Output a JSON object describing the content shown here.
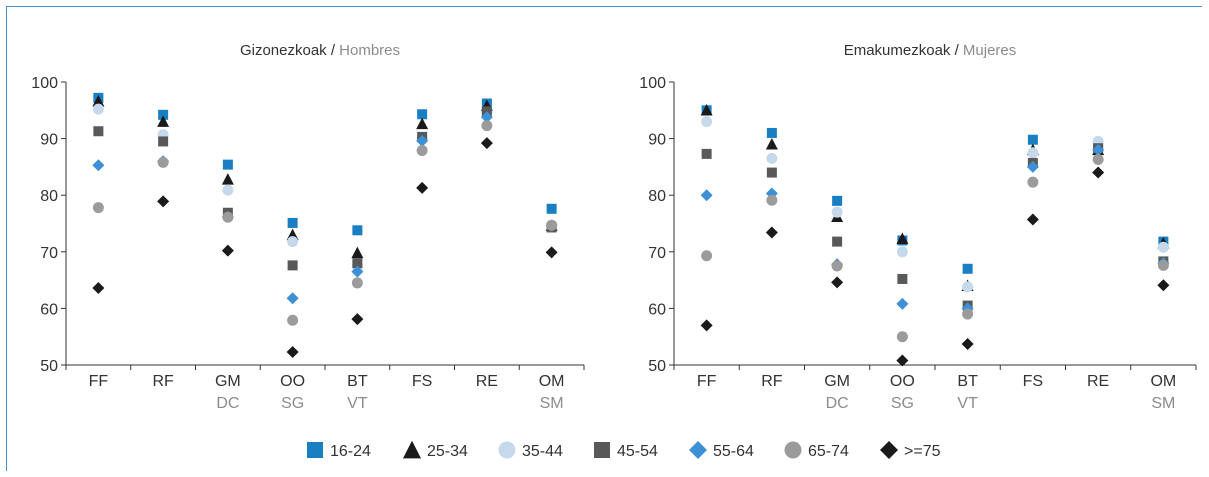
{
  "colors": {
    "16-24": "#1a7ec2",
    "25-34": "#1a1a1a",
    "35-44": "#c6d8ec",
    "45-54": "#595959",
    "55-64": "#3d8fd6",
    "65-74": "#9b9b9b",
    ">=75": "#1a1a1a",
    "axis": "#333333",
    "secondary_text": "#8c8c8c",
    "frame": "#4a90c8"
  },
  "legend": [
    {
      "name": "16-24",
      "marker": "square",
      "color": "#1a7ec2"
    },
    {
      "name": "25-34",
      "marker": "triangle",
      "color": "#1a1a1a"
    },
    {
      "name": "35-44",
      "marker": "circle",
      "color": "#c6d8ec"
    },
    {
      "name": "45-54",
      "marker": "square",
      "color": "#595959"
    },
    {
      "name": "55-64",
      "marker": "diamond",
      "color": "#3d8fd6"
    },
    {
      "name": "65-74",
      "marker": "circle",
      "color": "#9b9b9b"
    },
    {
      "name": ">=75",
      "marker": "diamond",
      "color": "#1a1a1a"
    }
  ],
  "chart_data": [
    {
      "type": "scatter",
      "title_primary": "Gizonezkoak / ",
      "title_secondary": "Hombres",
      "categories": [
        "FF",
        "RF",
        "GM",
        "OO",
        "BT",
        "FS",
        "RE",
        "OM"
      ],
      "categories_secondary": [
        "",
        "",
        "DC",
        "SG",
        "VT",
        "",
        "",
        "SM"
      ],
      "ylim": [
        50,
        100
      ],
      "yticks": [
        50,
        60,
        70,
        80,
        90,
        100
      ],
      "series": [
        {
          "name": "16-24",
          "values": [
            97.2,
            94.2,
            85.4,
            75.1,
            73.8,
            94.3,
            96.2,
            77.6
          ]
        },
        {
          "name": "25-34",
          "values": [
            96.6,
            93.0,
            82.8,
            73.0,
            69.8,
            92.6,
            95.8,
            74.6
          ]
        },
        {
          "name": "35-44",
          "values": [
            95.2,
            90.7,
            80.9,
            71.8,
            67.4,
            90.0,
            94.6,
            74.5
          ]
        },
        {
          "name": "45-54",
          "values": [
            91.3,
            89.5,
            76.9,
            67.6,
            68.0,
            90.3,
            94.8,
            74.3
          ]
        },
        {
          "name": "55-64",
          "values": [
            85.3,
            86.0,
            76.2,
            61.8,
            66.5,
            89.6,
            93.8,
            74.6
          ]
        },
        {
          "name": "65-74",
          "values": [
            77.8,
            85.8,
            76.1,
            57.9,
            64.5,
            87.9,
            92.3,
            74.7
          ]
        },
        {
          "name": ">=75",
          "values": [
            63.6,
            78.9,
            70.2,
            52.3,
            58.1,
            81.3,
            89.2,
            69.9
          ]
        }
      ]
    },
    {
      "type": "scatter",
      "title_primary": "Emakumezkoak / ",
      "title_secondary": "Mujeres",
      "categories": [
        "FF",
        "RF",
        "GM",
        "OO",
        "BT",
        "FS",
        "RE",
        "OM"
      ],
      "categories_secondary": [
        "",
        "",
        "DC",
        "SG",
        "VT",
        "",
        "",
        "SM"
      ],
      "ylim": [
        50,
        100
      ],
      "yticks": [
        50,
        60,
        70,
        80,
        90,
        100
      ],
      "series": [
        {
          "name": "16-24",
          "values": [
            95.0,
            91.0,
            79.0,
            72.0,
            67.0,
            89.8,
            88.5,
            71.8
          ]
        },
        {
          "name": "25-34",
          "values": [
            95.0,
            89.0,
            76.2,
            72.3,
            64.0,
            88.0,
            88.0,
            71.5
          ]
        },
        {
          "name": "35-44",
          "values": [
            93.0,
            86.5,
            77.0,
            70.0,
            63.8,
            87.5,
            89.5,
            70.8
          ]
        },
        {
          "name": "45-54",
          "values": [
            87.3,
            84.0,
            71.8,
            65.2,
            60.5,
            85.7,
            88.3,
            68.3
          ]
        },
        {
          "name": "55-64",
          "values": [
            80.0,
            80.3,
            67.8,
            60.8,
            60.0,
            85.0,
            88.0,
            68.0
          ]
        },
        {
          "name": "65-74",
          "values": [
            69.3,
            79.1,
            67.5,
            55.0,
            59.0,
            82.3,
            86.3,
            67.6
          ]
        },
        {
          "name": ">=75",
          "values": [
            57.0,
            73.4,
            64.6,
            50.8,
            53.7,
            75.7,
            84.0,
            64.1
          ]
        }
      ]
    }
  ]
}
